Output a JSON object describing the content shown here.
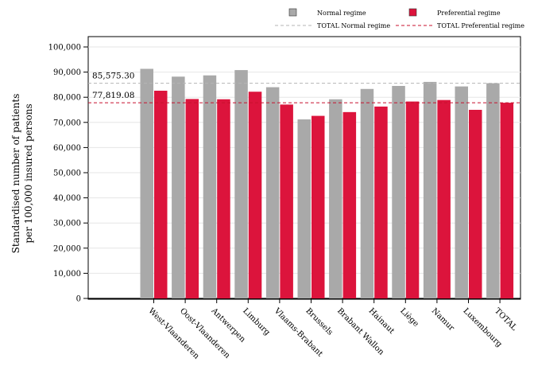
{
  "chart_data": {
    "type": "bar",
    "title": "",
    "xlabel": "",
    "ylabel_lines": [
      "Standardised number of patients",
      "per 100,000 insured persons"
    ],
    "ylim": [
      0,
      100000
    ],
    "yticks": [
      0,
      10000,
      20000,
      30000,
      40000,
      50000,
      60000,
      70000,
      80000,
      90000,
      100000
    ],
    "ytick_labels": [
      "0",
      "10,000",
      "20,000",
      "30,000",
      "40,000",
      "50,000",
      "60,000",
      "70,000",
      "80,000",
      "90,000",
      "100,000"
    ],
    "grid": true,
    "legend_position": "top",
    "categories": [
      "West-Vlaanderen",
      "Oost-Vlaanderen",
      "Antwerpen",
      "Limburg",
      "Vlaams-Brabant",
      "Brussels",
      "Brabant Wallon",
      "Hainaut",
      "Liège",
      "Namur",
      "Luxembourg",
      "TOTAL"
    ],
    "series": [
      {
        "name": "Normal regime",
        "color": "#a9a9a9",
        "values": [
          91300,
          88200,
          88700,
          90800,
          84000,
          71200,
          79200,
          83300,
          84500,
          86100,
          84300,
          85575.3
        ]
      },
      {
        "name": "Preferential regime",
        "color": "#dc143c",
        "values": [
          82600,
          79300,
          79200,
          82200,
          77100,
          72600,
          74100,
          76300,
          78300,
          78900,
          75000,
          77819.08
        ]
      }
    ],
    "reference_lines": [
      {
        "name": "TOTAL Normal regime",
        "value": 85575.3,
        "label": "85,575.30",
        "color": "#b5b5b5"
      },
      {
        "name": "TOTAL Preferential regime",
        "value": 77819.08,
        "label": "77,819.08",
        "color": "#c8102e"
      }
    ]
  }
}
